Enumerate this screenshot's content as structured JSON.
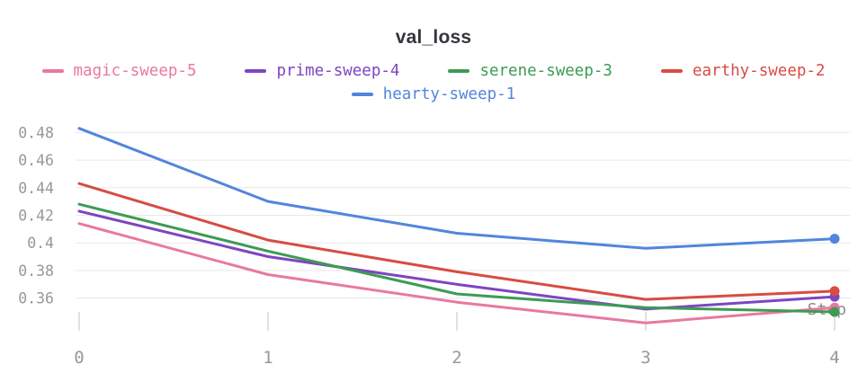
{
  "title": "val_loss",
  "chart_data": {
    "type": "line",
    "title": "val_loss",
    "xlabel": "Step",
    "ylabel": "",
    "x": [
      0,
      1,
      2,
      3,
      4
    ],
    "x_tick_labels": [
      "0",
      "1",
      "2",
      "3",
      "4"
    ],
    "y_ticks": [
      0.48,
      0.46,
      0.44,
      0.42,
      0.4,
      0.38,
      0.36
    ],
    "y_tick_labels": [
      "0.48",
      "0.46",
      "0.44",
      "0.42",
      "0.4",
      "0.38",
      "0.36"
    ],
    "ylim": [
      0.336,
      0.491
    ],
    "grid": "horizontal",
    "legend_position": "top",
    "marker_on_last_point": true,
    "series": [
      {
        "name": "magic-sweep-5",
        "color": "#e8799f",
        "values": [
          0.414,
          0.377,
          0.357,
          0.342,
          0.353
        ]
      },
      {
        "name": "prime-sweep-4",
        "color": "#7d45c2",
        "values": [
          0.423,
          0.39,
          0.37,
          0.352,
          0.361
        ]
      },
      {
        "name": "serene-sweep-3",
        "color": "#3d9b53",
        "values": [
          0.428,
          0.394,
          0.363,
          0.353,
          0.35
        ]
      },
      {
        "name": "earthy-sweep-2",
        "color": "#d84c43",
        "values": [
          0.443,
          0.402,
          0.379,
          0.359,
          0.365
        ]
      },
      {
        "name": "hearty-sweep-1",
        "color": "#5285dc",
        "values": [
          0.483,
          0.43,
          0.407,
          0.396,
          0.403
        ]
      }
    ],
    "legend_order": [
      "magic-sweep-5",
      "prime-sweep-4",
      "serene-sweep-3",
      "earthy-sweep-2",
      "hearty-sweep-1"
    ]
  },
  "style": {
    "grid_color": "#e9e9ea",
    "tick_color": "#d9d9db",
    "axis_label_color": "#97979d",
    "step_label_color": "#8b8b90",
    "title_color": "#32353b"
  }
}
